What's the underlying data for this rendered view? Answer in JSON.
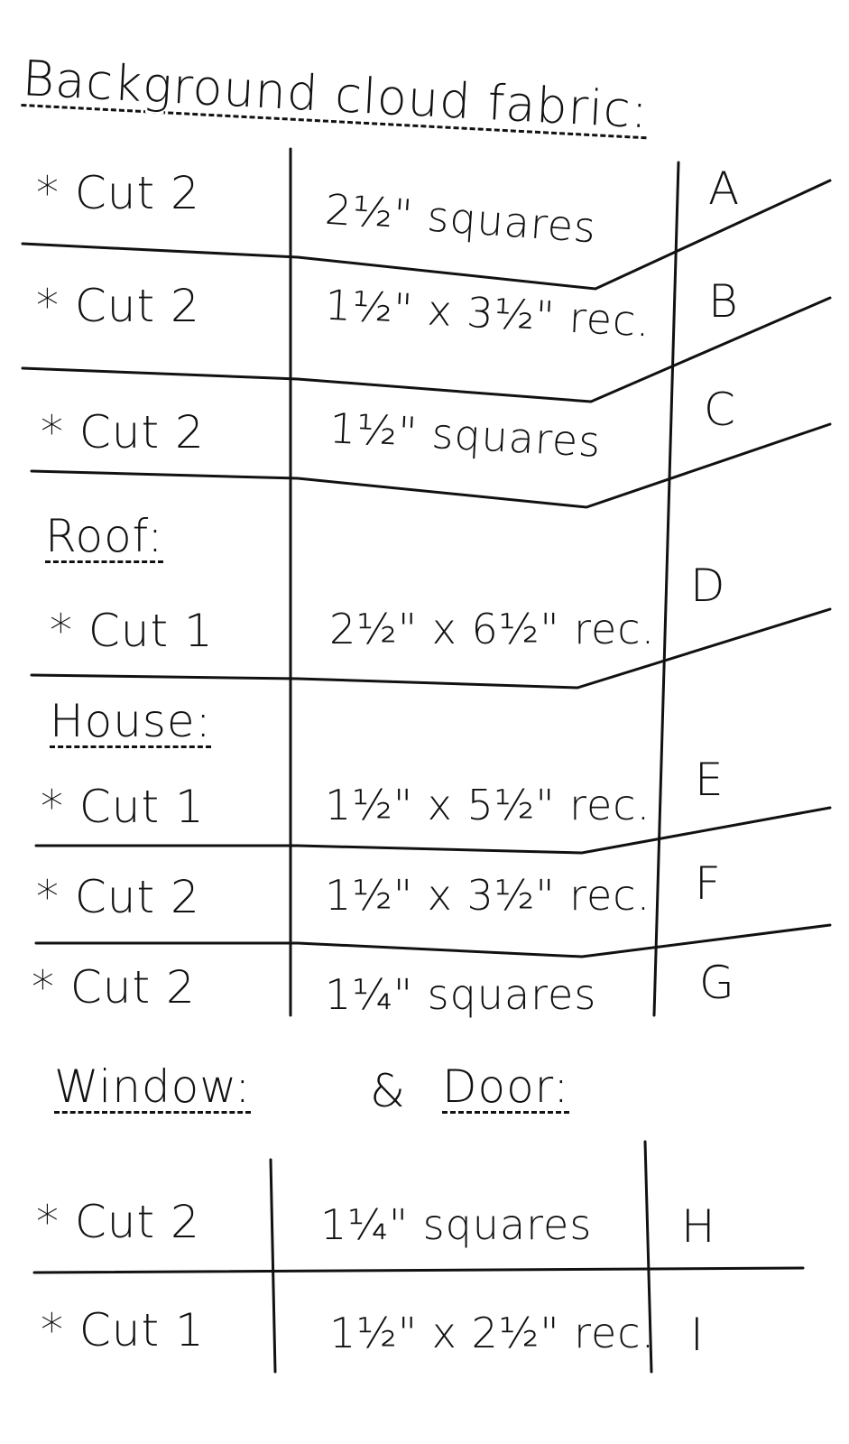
{
  "title": "Background cloud fabric:",
  "rows": [
    {
      "cut": "* Cut 2",
      "size": "2½\" squares",
      "label": "A"
    },
    {
      "cut": "* Cut 2",
      "size": "1½\" x 3½\" rec.",
      "label": "B"
    },
    {
      "cut": "* Cut 2",
      "size": "1½\" squares",
      "label": "C"
    },
    {
      "cut": "* Cut 1",
      "size": "2½\" x 6½\" rec.",
      "label": "D"
    },
    {
      "cut": "* Cut 1",
      "size": "1½\" x 5½\" rec.",
      "label": "E"
    },
    {
      "cut": "* Cut 2",
      "size": "1½\" x 3½\" rec.",
      "label": "F"
    },
    {
      "cut": "* Cut 2",
      "size": "1¼\" squares",
      "label": "G"
    },
    {
      "cut": "* Cut 2",
      "size": "1¼\" squares",
      "label": "H"
    },
    {
      "cut": "* Cut 1",
      "size": "1½\" x 2½\" rec.",
      "label": "I"
    }
  ],
  "sections": {
    "roof": "Roof:",
    "house": "House:",
    "window": "Window:",
    "amp": "&",
    "door": "Door:"
  },
  "ink_color": "#111111"
}
